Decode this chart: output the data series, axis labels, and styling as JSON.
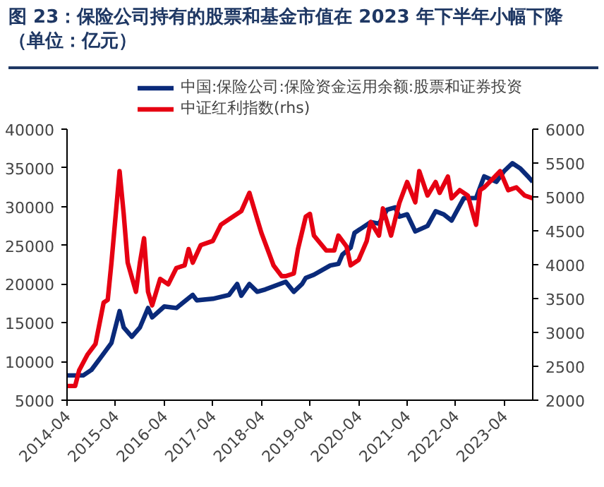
{
  "chart_data": {
    "type": "line",
    "title": "图 23：保险公司持有的股票和基金市值在 2023 年下半年小幅下降（单位：亿元）",
    "series": [
      {
        "name": "中国:保险公司:保险资金运用余额:股票和证券投资",
        "color": "#0a2a7a",
        "x": [
          "2014-04",
          "2014-08",
          "2014-10",
          "2014-12",
          "2015-03",
          "2015-05",
          "2015-06",
          "2015-08",
          "2015-10",
          "2015-12",
          "2016-01",
          "2016-04",
          "2016-07",
          "2016-11",
          "2016-12",
          "2017-04",
          "2017-08",
          "2017-10",
          "2017-11",
          "2018-01",
          "2018-03",
          "2018-05",
          "2018-10",
          "2018-12",
          "2019-02",
          "2019-03",
          "2019-05",
          "2019-09",
          "2019-11",
          "2019-12",
          "2020-02",
          "2020-03",
          "2020-05",
          "2020-07",
          "2020-09",
          "2020-11",
          "2021-01",
          "2021-02",
          "2021-04",
          "2021-06",
          "2021-09",
          "2021-11",
          "2022-01",
          "2022-03",
          "2022-06",
          "2022-09",
          "2022-11",
          "2023-02",
          "2023-04",
          "2023-06",
          "2023-08",
          "2023-10",
          "2023-11"
        ],
        "values": [
          8200,
          8200,
          8900,
          10300,
          12400,
          16500,
          14400,
          13200,
          14400,
          16900,
          15700,
          17100,
          16900,
          18600,
          17900,
          18100,
          18600,
          20000,
          18500,
          20000,
          19000,
          19300,
          20300,
          19000,
          20000,
          20800,
          21200,
          22400,
          22600,
          23800,
          24700,
          26600,
          27300,
          28000,
          27800,
          29600,
          29900,
          28700,
          29000,
          26800,
          27500,
          29400,
          29000,
          28200,
          31100,
          31100,
          33900,
          33200,
          34600,
          35600,
          34900,
          33800,
          33200
        ]
      },
      {
        "name": "中证红利指数(rhs)",
        "color": "#e60012",
        "axis": "y2",
        "x": [
          "2014-04",
          "2014-06",
          "2014-07",
          "2014-09",
          "2014-11",
          "2015-01",
          "2015-02",
          "2015-03",
          "2015-05",
          "2015-06",
          "2015-07",
          "2015-09",
          "2015-10",
          "2015-11",
          "2015-12",
          "2016-01",
          "2016-03",
          "2016-05",
          "2016-07",
          "2016-09",
          "2016-10",
          "2016-11",
          "2017-01",
          "2017-04",
          "2017-06",
          "2017-08",
          "2017-11",
          "2018-01",
          "2018-03",
          "2018-04",
          "2018-06",
          "2018-07",
          "2018-09",
          "2018-10",
          "2018-12",
          "2019-01",
          "2019-03",
          "2019-04",
          "2019-05",
          "2019-08",
          "2019-10",
          "2019-11",
          "2020-01",
          "2020-02",
          "2020-04",
          "2020-06",
          "2020-07",
          "2020-09",
          "2020-10",
          "2020-12",
          "2021-02",
          "2021-04",
          "2021-06",
          "2021-07",
          "2021-09",
          "2021-11",
          "2021-12",
          "2022-02",
          "2022-03",
          "2022-05",
          "2022-07",
          "2022-09",
          "2022-10",
          "2022-11",
          "2023-01",
          "2023-03",
          "2023-05",
          "2023-07",
          "2023-09",
          "2023-11"
        ],
        "values": [
          2210,
          2210,
          2440,
          2670,
          2830,
          3440,
          3480,
          4030,
          5380,
          4750,
          4030,
          3600,
          4030,
          4390,
          3600,
          3400,
          3790,
          3710,
          3950,
          3990,
          4230,
          4030,
          4290,
          4350,
          4590,
          4670,
          4790,
          5060,
          4670,
          4470,
          4150,
          3990,
          3830,
          3830,
          3870,
          4230,
          4710,
          4750,
          4430,
          4210,
          4210,
          4430,
          4270,
          3990,
          4070,
          4350,
          4630,
          4430,
          4830,
          4430,
          4910,
          5220,
          4920,
          5380,
          5020,
          5220,
          5060,
          5300,
          4980,
          5100,
          5020,
          4590,
          5100,
          5140,
          5260,
          5380,
          5100,
          5140,
          5020,
          4980
        ]
      }
    ],
    "xlim": [
      "2014-04",
      "2023-11"
    ],
    "xticks": [
      "2014-04",
      "2015-04",
      "2016-04",
      "2017-04",
      "2018-04",
      "2019-04",
      "2020-04",
      "2021-04",
      "2022-04",
      "2023-04"
    ],
    "ylim": [
      5000,
      40000
    ],
    "yticks": [
      5000,
      10000,
      15000,
      20000,
      25000,
      30000,
      35000,
      40000
    ],
    "y2lim": [
      2000,
      6000
    ],
    "y2ticks": [
      2000,
      2500,
      3000,
      3500,
      4000,
      4500,
      5000,
      5500,
      6000
    ],
    "grid": false,
    "legend": "top",
    "line_style": "solid",
    "marker": "none"
  }
}
